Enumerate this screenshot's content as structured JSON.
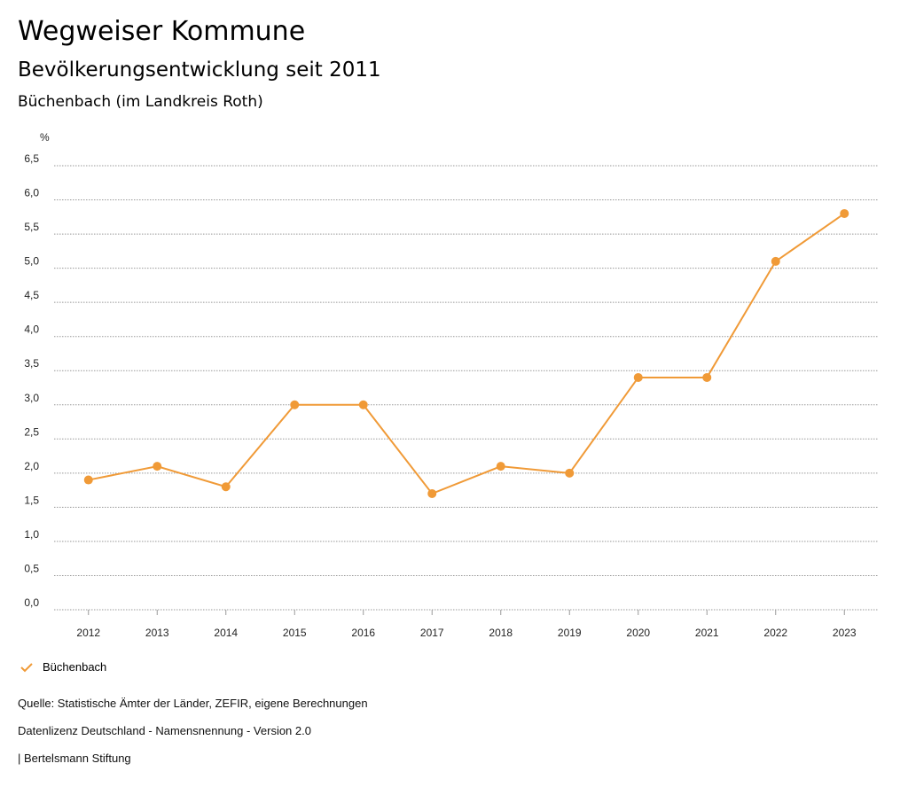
{
  "header": {
    "title": "Wegweiser Kommune",
    "subtitle": "Bevölkerungsentwicklung seit 2011",
    "region": "Büchenbach (im Landkreis Roth)"
  },
  "chart_data": {
    "type": "line",
    "ylabel": "%",
    "ylim": [
      0,
      6.5
    ],
    "yticks": [
      "0,0",
      "0,5",
      "1,0",
      "1,5",
      "2,0",
      "2,5",
      "3,0",
      "3,5",
      "4,0",
      "4,5",
      "5,0",
      "5,5",
      "6,0",
      "6,5"
    ],
    "categories": [
      "2012",
      "2013",
      "2014",
      "2015",
      "2016",
      "2017",
      "2018",
      "2019",
      "2020",
      "2021",
      "2022",
      "2023"
    ],
    "series": [
      {
        "name": "Büchenbach",
        "color": "#f09a37",
        "values": [
          1.9,
          2.1,
          1.8,
          3.0,
          3.0,
          1.7,
          2.1,
          2.0,
          3.4,
          3.4,
          5.1,
          5.8
        ]
      }
    ],
    "grid": true,
    "legend": "bottom-left"
  },
  "footer": {
    "source": "Quelle: Statistische Ämter der Länder, ZEFIR, eigene Berechnungen",
    "license": "Datenlizenz Deutschland - Namensnennung - Version 2.0",
    "publisher": "| Bertelsmann Stiftung"
  }
}
